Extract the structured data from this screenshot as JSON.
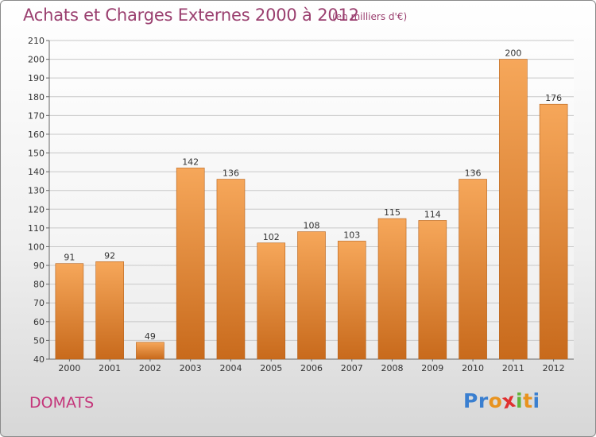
{
  "header": {
    "title": "Achats et Charges Externes 2000 à 2012",
    "subtitle": "(en milliers d'€)"
  },
  "footer": {
    "commune": "DOMATS",
    "logo_letters": [
      "P",
      "r",
      "o",
      "x",
      "i",
      "t",
      "i"
    ],
    "logo_colors": [
      "#3a7fd0",
      "#3a7fd0",
      "#e8931f",
      "#e03030",
      "#62b33a",
      "#e8931f",
      "#3a7fd0"
    ]
  },
  "colors": {
    "bar_top": "#f6a75a",
    "bar_bottom": "#c86a1c",
    "grid": "#c8c8c8",
    "title": "#9a3f6f"
  },
  "chart_data": {
    "type": "bar",
    "categories": [
      "2000",
      "2001",
      "2002",
      "2003",
      "2004",
      "2005",
      "2006",
      "2007",
      "2008",
      "2009",
      "2010",
      "2011",
      "2012"
    ],
    "values": [
      91,
      92,
      49,
      142,
      136,
      102,
      108,
      103,
      115,
      114,
      136,
      200,
      176
    ],
    "ylim": [
      40,
      210
    ],
    "yticks": [
      40,
      50,
      60,
      70,
      80,
      90,
      100,
      110,
      120,
      130,
      140,
      150,
      160,
      170,
      180,
      190,
      200,
      210
    ],
    "grid": true
  }
}
